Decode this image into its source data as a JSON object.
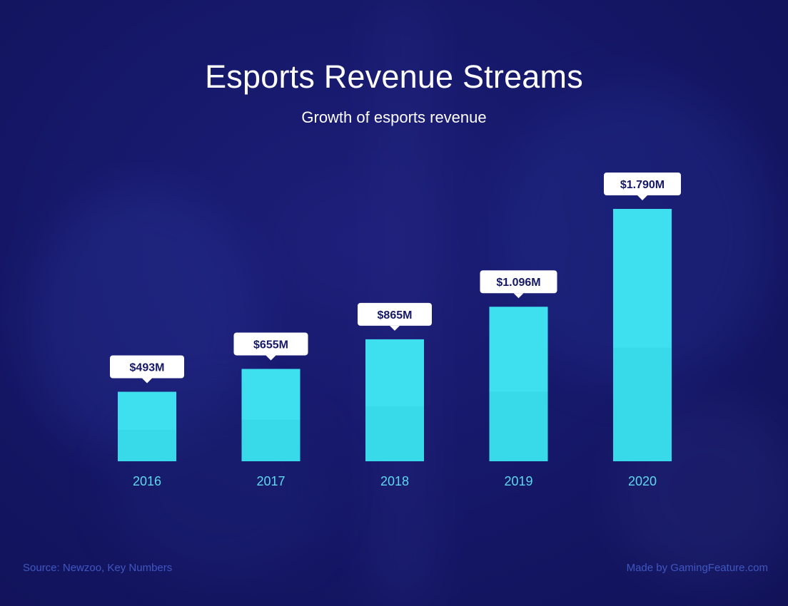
{
  "title": "Esports Revenue Streams",
  "subtitle": "Growth of esports revenue",
  "footer": {
    "source": "Source: Newzoo, Key Numbers",
    "credit": "Made by GamingFeature.com"
  },
  "colors": {
    "background": "#16186a",
    "bar": "#3ee0f0",
    "bar_shadow": "#2ecadb",
    "year_label": "#5fd8ee",
    "callout_bg": "#ffffff",
    "callout_text": "#151866",
    "footer": "#3f57c0"
  },
  "chart_data": {
    "type": "bar",
    "title": "Esports Revenue Streams",
    "subtitle": "Growth of esports revenue",
    "categories": [
      "2016",
      "2017",
      "2018",
      "2019",
      "2020"
    ],
    "values": [
      493,
      655,
      865,
      1096,
      1790
    ],
    "value_labels": [
      "$493M",
      "$655M",
      "$865M",
      "$1.096M",
      "$1.790M"
    ],
    "unit": "USD millions",
    "xlabel": "",
    "ylabel": "",
    "ylim": [
      0,
      1790
    ],
    "grid": false
  }
}
